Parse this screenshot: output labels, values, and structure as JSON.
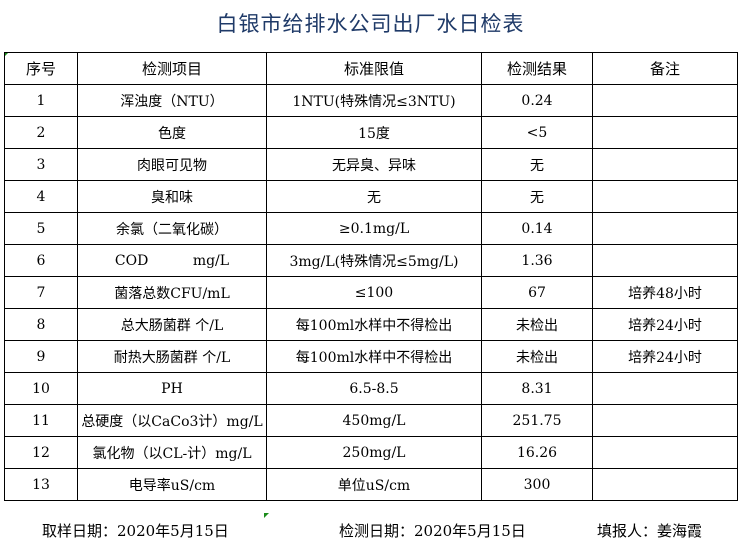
{
  "title": "白银市给排水公司出厂水日检表",
  "columns": [
    "序号",
    "检测项目",
    "标准限值",
    "检测结果",
    "备注"
  ],
  "rows": [
    [
      "1",
      "浑浊度（NTU）",
      "1NTU(特殊情况≤3NTU)",
      "0.24",
      ""
    ],
    [
      "2",
      "色度",
      "15度",
      "<5",
      ""
    ],
    [
      "3",
      "肉眼可见物",
      "无异臭、异味",
      "无",
      ""
    ],
    [
      "4",
      "臭和味",
      "无",
      "无",
      ""
    ],
    [
      "5",
      "余氯（二氧化碳）",
      "≥0.1mg/L",
      "0.14",
      ""
    ],
    [
      "6",
      "COD          mg/L",
      "3mg/L(特殊情况≤5mg/L)",
      "1.36",
      ""
    ],
    [
      "7",
      "菌落总数CFU/mL",
      "≤100",
      "67",
      "培养48小时"
    ],
    [
      "8",
      "总大肠菌群 个/L",
      "每100ml水样中不得检出",
      "未检出",
      "培养24小时"
    ],
    [
      "9",
      "耐热大肠菌群 个/L",
      "每100ml水样中不得检出",
      "未检出",
      "培养24小时"
    ],
    [
      "10",
      "PH",
      "6.5-8.5",
      "8.31",
      ""
    ],
    [
      "11",
      "总硬度（以CaCo3计）mg/L",
      "450mg/L",
      "251.75",
      ""
    ],
    [
      "12",
      "氯化物（以CL-计）mg/L",
      "250mg/L",
      "16.26",
      ""
    ],
    [
      "13",
      "电导率uS/cm",
      "单位uS/cm",
      "300",
      ""
    ]
  ],
  "footer": {
    "sample_date": "取样日期：2020年5月15日",
    "test_date": "检测日期：2020年5月15日",
    "reporter": "填报人：姜海霞"
  }
}
